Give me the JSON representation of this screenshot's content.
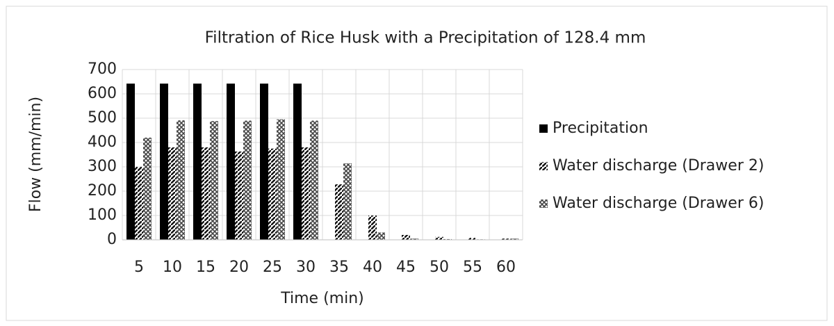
{
  "chart_data": {
    "type": "bar",
    "title": "Filtration of Rice Husk with a Precipitation of 128.4 mm",
    "x_label": "Time (min)",
    "y_label": "Flow (mm/min)",
    "categories": [
      "5",
      "10",
      "15",
      "20",
      "25",
      "30",
      "35",
      "40",
      "45",
      "50",
      "55",
      "60"
    ],
    "series": [
      {
        "name": "Precipitation",
        "color": "#000000",
        "values": [
          642,
          642,
          642,
          642,
          642,
          642,
          0,
          0,
          0,
          0,
          0,
          0
        ]
      },
      {
        "name": "Water discharge (Drawer 2)",
        "color": "#111111",
        "values": [
          300,
          380,
          380,
          363,
          375,
          380,
          228,
          100,
          20,
          12,
          8,
          5
        ]
      },
      {
        "name": "Water discharge (Drawer 6)",
        "color": "#444444",
        "values": [
          420,
          491,
          488,
          490,
          495,
          490,
          314,
          30,
          5,
          3,
          2,
          5
        ]
      }
    ],
    "ylim": [
      0,
      700
    ],
    "yticks": [
      0,
      100,
      200,
      300,
      400,
      500,
      600,
      700
    ],
    "grid": true,
    "legend": "right"
  }
}
